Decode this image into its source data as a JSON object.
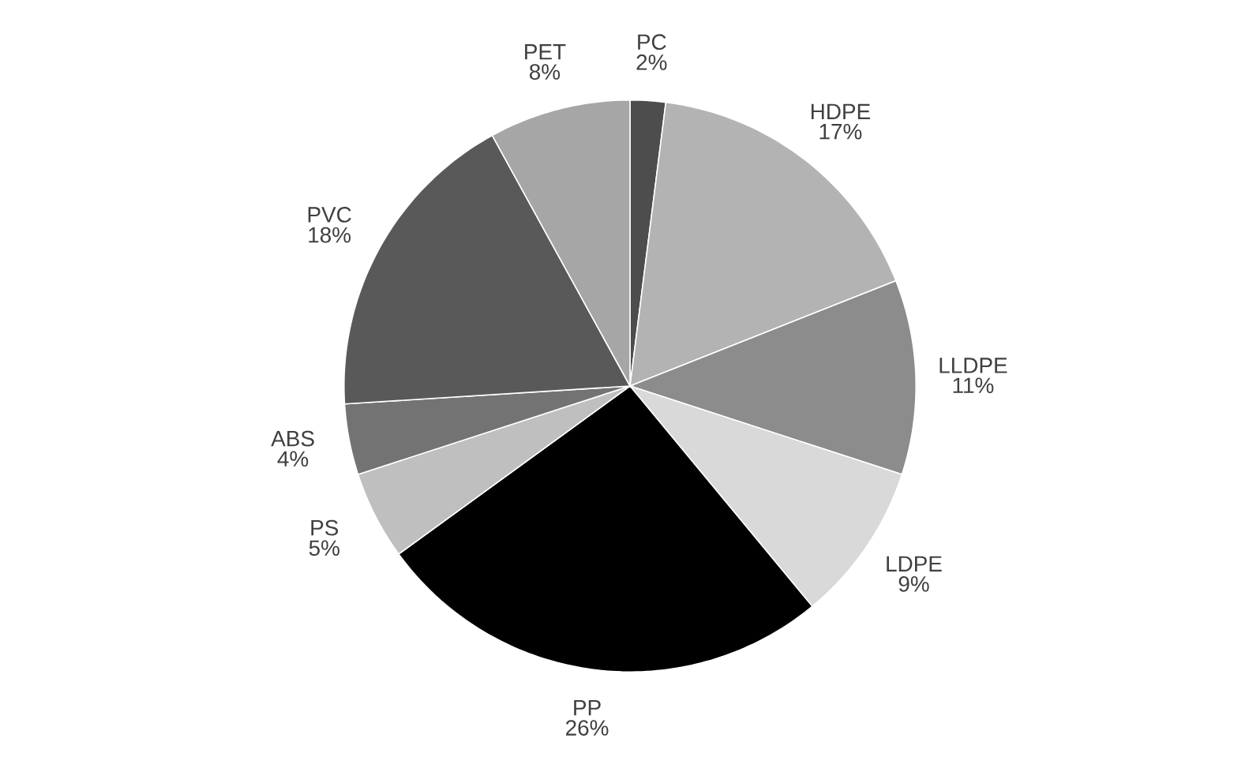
{
  "chart_data": {
    "type": "pie",
    "categories": [
      "PC",
      "HDPE",
      "LLDPE",
      "LDPE",
      "PP",
      "PS",
      "ABS",
      "PVC",
      "PET"
    ],
    "values": [
      2,
      17,
      11,
      9,
      26,
      5,
      4,
      18,
      8
    ],
    "value_labels": [
      "2%",
      "17%",
      "11%",
      "9%",
      "26%",
      "5%",
      "4%",
      "18%",
      "8%"
    ],
    "colors": [
      "#4d4d4d",
      "#b3b3b3",
      "#8c8c8c",
      "#d9d9d9",
      "#000000",
      "#bfbfbf",
      "#737373",
      "#595959",
      "#a6a6a6"
    ]
  }
}
